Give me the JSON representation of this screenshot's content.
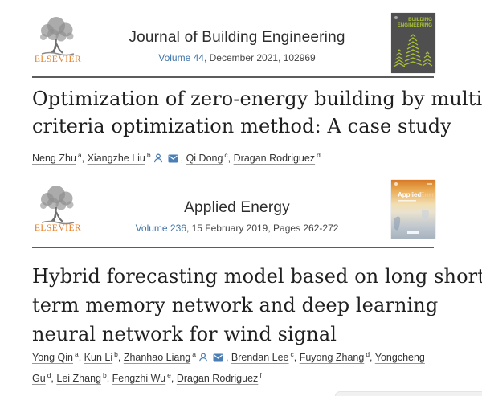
{
  "branding": {
    "elsevier_label": "ELSEVIER"
  },
  "colors": {
    "link_blue": "#3f74ab",
    "logo_orange": "#e87f24",
    "cover_green": "#aac335",
    "rule_gray": "#5c5c5c"
  },
  "articles": [
    {
      "journal_name": "Journal of Building Engineering",
      "issue_volume": "Volume 44",
      "issue_rest": ", December 2021, 102969",
      "cover_line1": "BUILDING",
      "cover_line2": "ENGINEERING",
      "title": "Optimization of zero-energy building by multi-criteria optimization method: A case study",
      "title_lines": [
        "Optimization of zero-energy building by multi-",
        "criteria optimization method: A case study"
      ],
      "authors": [
        {
          "name": "Neng Zhu",
          "sup": "a"
        },
        {
          "name": "Xiangzhe Liu",
          "sup": "b",
          "corresponding": true
        },
        {
          "name": "Qi Dong",
          "sup": "c"
        },
        {
          "name": "Dragan Rodriguez",
          "sup": "d"
        }
      ]
    },
    {
      "journal_name": "Applied Energy",
      "issue_volume": "Volume 236",
      "issue_rest": ", 15 February 2019, Pages 262-272",
      "cover_word1": "Applied",
      "cover_word2": "Energy",
      "title": "Hybrid forecasting model based on long short term memory network and deep learning neural network for wind signal",
      "title_lines": [
        "Hybrid forecasting model based on long short",
        "term memory network and deep learning",
        "neural network for wind signal"
      ],
      "authors": [
        {
          "name": "Yong Qin",
          "sup": "a"
        },
        {
          "name": "Kun Li",
          "sup": "b"
        },
        {
          "name": "Zhanhao Liang",
          "sup": "a",
          "corresponding": true
        },
        {
          "name": "Brendan Lee",
          "sup": "c"
        },
        {
          "name": "Fuyong Zhang",
          "sup": "d"
        },
        {
          "name": "Yongcheng Gu",
          "sup": "d"
        },
        {
          "name": "Lei Zhang",
          "sup": "b"
        },
        {
          "name": "Fengzhi Wu",
          "sup": "e"
        },
        {
          "name": "Dragan Rodriguez",
          "sup": "f"
        }
      ]
    }
  ]
}
